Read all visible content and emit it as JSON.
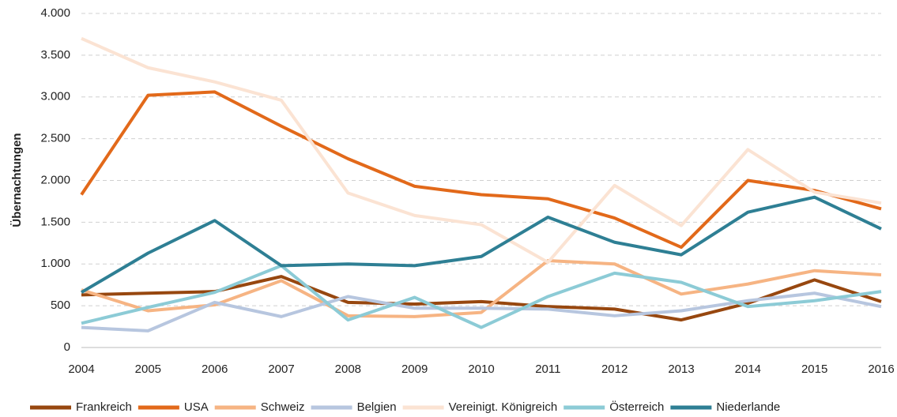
{
  "chart_data": {
    "type": "line",
    "ylabel": "Übernachtungen",
    "categories": [
      "2004",
      "2005",
      "2006",
      "2007",
      "2008",
      "2009",
      "2010",
      "2011",
      "2012",
      "2013",
      "2014",
      "2015",
      "2016"
    ],
    "series": [
      {
        "name": "Frankreich",
        "color": "#97470f",
        "values": [
          630,
          650,
          670,
          850,
          540,
          520,
          550,
          490,
          460,
          330,
          530,
          810,
          550
        ]
      },
      {
        "name": "USA",
        "color": "#e2691a",
        "values": [
          1830,
          3020,
          3060,
          2650,
          2260,
          1930,
          1830,
          1780,
          1550,
          1200,
          2000,
          1880,
          1660
        ]
      },
      {
        "name": "Schweiz",
        "color": "#f6b483",
        "values": [
          690,
          440,
          510,
          800,
          380,
          370,
          420,
          1040,
          1000,
          640,
          760,
          920,
          870
        ]
      },
      {
        "name": "Belgien",
        "color": "#b7c6df",
        "values": [
          240,
          200,
          540,
          370,
          610,
          470,
          470,
          460,
          380,
          440,
          560,
          650,
          490
        ]
      },
      {
        "name": "Vereinigt. Königreich",
        "color": "#fbe3d3",
        "values": [
          3700,
          3350,
          3180,
          2960,
          1850,
          1580,
          1470,
          1020,
          1940,
          1460,
          2370,
          1860,
          1730
        ]
      },
      {
        "name": "Österreich",
        "color": "#8ccbd6",
        "values": [
          290,
          480,
          660,
          980,
          330,
          600,
          240,
          610,
          890,
          780,
          490,
          560,
          670
        ]
      },
      {
        "name": "Niederlande",
        "color": "#2e7f94",
        "values": [
          660,
          1130,
          1520,
          980,
          1000,
          980,
          1090,
          1560,
          1260,
          1110,
          1620,
          1800,
          1420
        ]
      }
    ],
    "ylim": [
      0,
      4000
    ],
    "yticks": [
      0,
      500,
      {
        "value": 1000,
        "label": "1.000"
      },
      {
        "value": 1500,
        "label": "1.500"
      },
      {
        "value": 2000,
        "label": "2.000"
      },
      {
        "value": 2500,
        "label": "2.500"
      },
      {
        "value": 3000,
        "label": "3.000"
      },
      {
        "value": 3500,
        "label": "3.500"
      },
      {
        "value": 4000,
        "label": "4.000"
      }
    ],
    "grid": true,
    "legend": "bottom"
  }
}
